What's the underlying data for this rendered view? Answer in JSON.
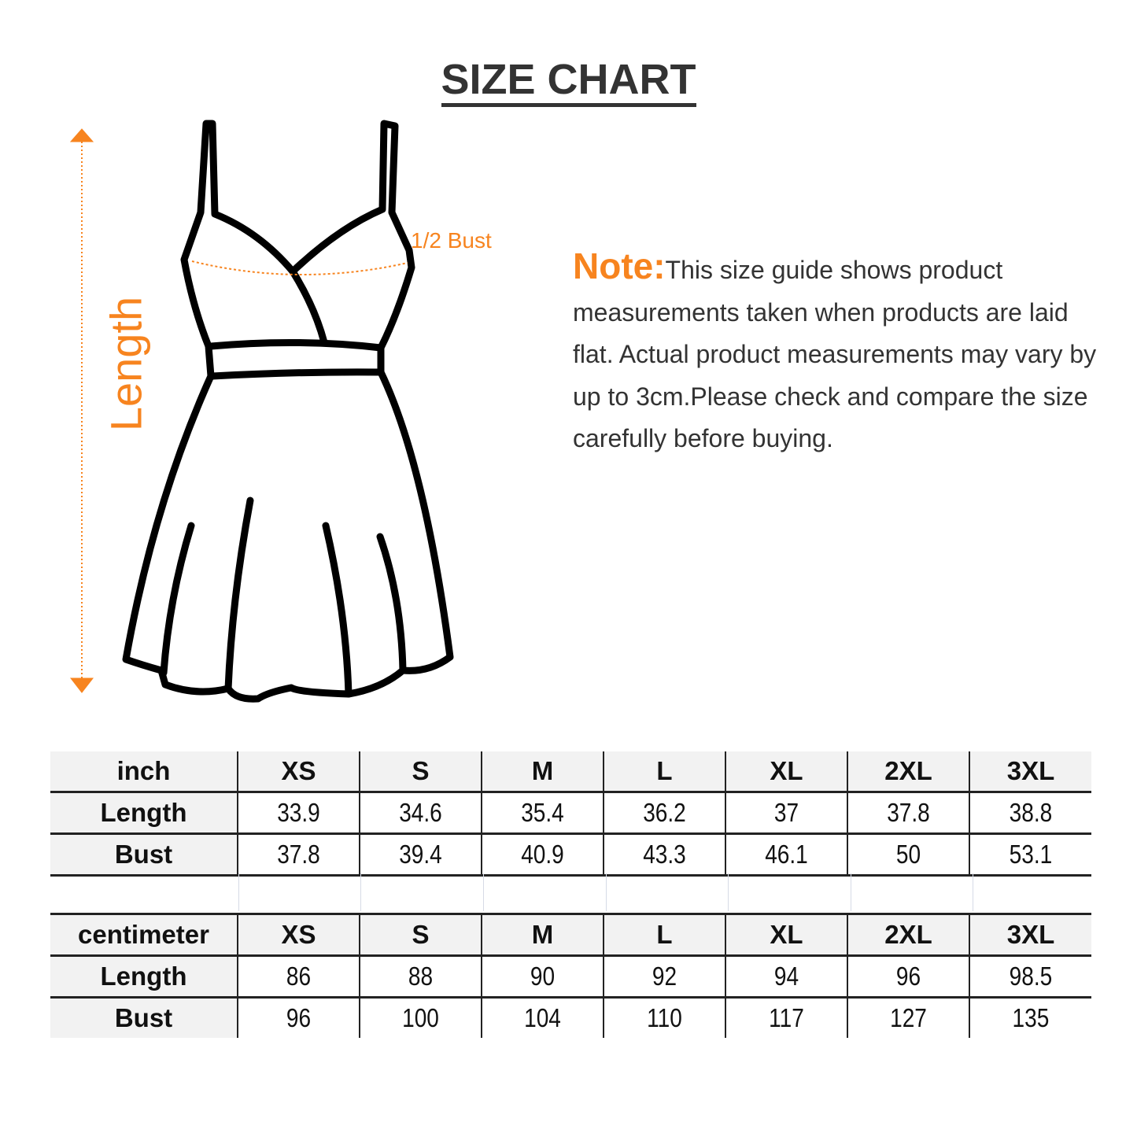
{
  "title": "SIZE CHART",
  "diagram": {
    "length_label": "Length",
    "bust_label": "1/2 Bust",
    "accent_color": "#f7841f"
  },
  "note": {
    "label": "Note:",
    "text": "This size guide shows product measurements taken when products are laid flat. Actual product measurements may vary by up to 3cm.Please check and compare the size carefully before buying."
  },
  "tables": [
    {
      "unit": "inch",
      "sizes": [
        "XS",
        "S",
        "M",
        "L",
        "XL",
        "2XL",
        "3XL"
      ],
      "rows": [
        {
          "label": "Length",
          "values": [
            "33.9",
            "34.6",
            "35.4",
            "36.2",
            "37",
            "37.8",
            "38.8"
          ]
        },
        {
          "label": "Bust",
          "values": [
            "37.8",
            "39.4",
            "40.9",
            "43.3",
            "46.1",
            "50",
            "53.1"
          ]
        }
      ]
    },
    {
      "unit": "centimeter",
      "sizes": [
        "XS",
        "S",
        "M",
        "L",
        "XL",
        "2XL",
        "3XL"
      ],
      "rows": [
        {
          "label": "Length",
          "values": [
            "86",
            "88",
            "90",
            "92",
            "94",
            "96",
            "98.5"
          ]
        },
        {
          "label": "Bust",
          "values": [
            "96",
            "100",
            "104",
            "110",
            "117",
            "127",
            "135"
          ]
        }
      ]
    }
  ]
}
